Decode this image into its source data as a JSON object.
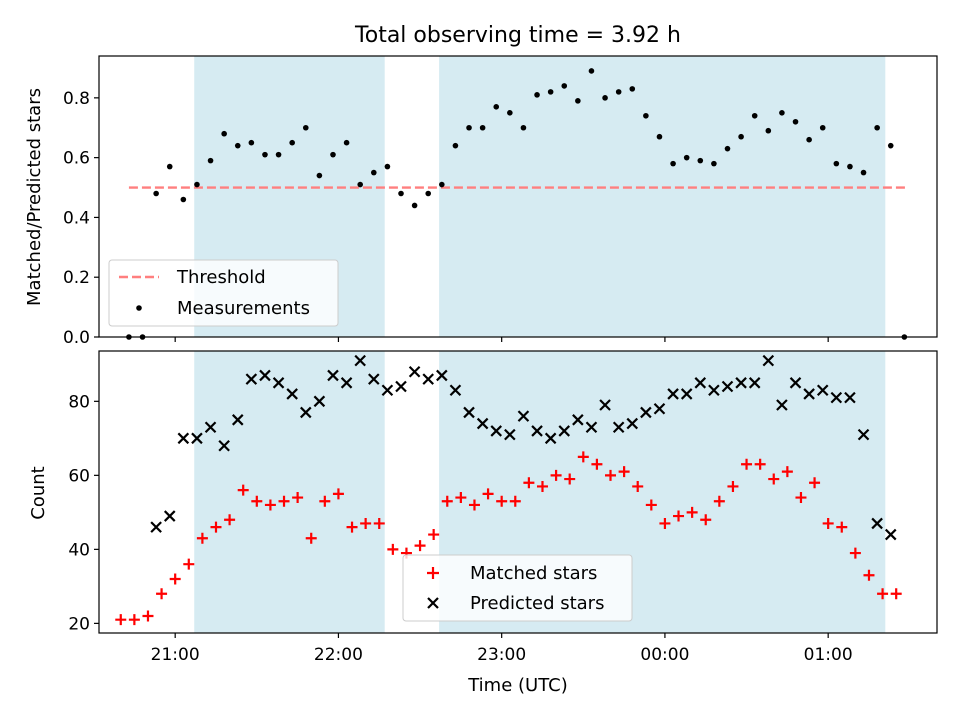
{
  "chart_data": [
    {
      "type": "scatter",
      "title": "Total observing time = 3.92 h",
      "ylabel": "Matched/Predicted stars",
      "xlabel": "",
      "ylim": [
        0.0,
        0.94
      ],
      "yticks": [
        "0.0",
        "0.2",
        "0.4",
        "0.6",
        "0.8"
      ],
      "ytick_values": [
        0.0,
        0.2,
        0.4,
        0.6,
        0.8
      ],
      "legend_placement": "lower-left",
      "legend": [
        "Threshold",
        "Measurements"
      ],
      "threshold": {
        "name": "Threshold",
        "value": 0.5,
        "color": "#ff7f7f",
        "x_start": "20:43",
        "x_end": "01:29"
      },
      "series": [
        {
          "name": "Measurements",
          "color": "#000000",
          "x": [
            "20:43",
            "20:48",
            "20:53",
            "20:58",
            "21:03",
            "21:08",
            "21:13",
            "21:18",
            "21:23",
            "21:28",
            "21:33",
            "21:38",
            "21:43",
            "21:48",
            "21:53",
            "21:58",
            "22:03",
            "22:08",
            "22:13",
            "22:18",
            "22:23",
            "22:28",
            "22:33",
            "22:38",
            "22:43",
            "22:48",
            "22:53",
            "22:58",
            "23:03",
            "23:08",
            "23:13",
            "23:18",
            "23:23",
            "23:28",
            "23:33",
            "23:38",
            "23:43",
            "23:48",
            "23:53",
            "23:58",
            "00:03",
            "00:08",
            "00:13",
            "00:18",
            "00:23",
            "00:28",
            "00:33",
            "00:38",
            "00:43",
            "00:48",
            "00:53",
            "00:58",
            "01:03",
            "01:08",
            "01:13",
            "01:18",
            "01:23",
            "01:28"
          ],
          "y": [
            0.0,
            0.0,
            0.48,
            0.57,
            0.46,
            0.51,
            0.59,
            0.68,
            0.64,
            0.65,
            0.61,
            0.61,
            0.65,
            0.7,
            0.54,
            0.61,
            0.65,
            0.51,
            0.55,
            0.57,
            0.48,
            0.44,
            0.48,
            0.51,
            0.64,
            0.7,
            0.7,
            0.77,
            0.75,
            0.7,
            0.81,
            0.82,
            0.84,
            0.79,
            0.89,
            0.8,
            0.82,
            0.83,
            0.74,
            0.67,
            0.58,
            0.6,
            0.59,
            0.58,
            0.63,
            0.67,
            0.74,
            0.69,
            0.75,
            0.72,
            0.66,
            0.7,
            0.58,
            0.57,
            0.55,
            0.7,
            0.64,
            0.0
          ]
        }
      ]
    },
    {
      "type": "scatter",
      "title": "",
      "ylabel": "Count",
      "xlabel": "Time (UTC)",
      "ylim": [
        17.4,
        93.6
      ],
      "yticks": [
        "20",
        "40",
        "60",
        "80"
      ],
      "ytick_values": [
        20,
        40,
        60,
        80
      ],
      "xlim": [
        "20:32",
        "01:40"
      ],
      "xticks": [
        "21:00",
        "22:00",
        "23:00",
        "00:00",
        "01:00"
      ],
      "legend_placement": "lower-center",
      "legend": [
        "Matched stars",
        "Predicted stars"
      ],
      "series": [
        {
          "name": "Matched stars",
          "marker": "plus",
          "color": "#ff0000",
          "x": [
            "20:40",
            "20:45",
            "20:50",
            "20:55",
            "21:00",
            "21:05",
            "21:10",
            "21:15",
            "21:20",
            "21:25",
            "21:30",
            "21:35",
            "21:40",
            "21:45",
            "21:50",
            "21:55",
            "22:00",
            "22:05",
            "22:10",
            "22:15",
            "22:20",
            "22:25",
            "22:30",
            "22:35",
            "22:40",
            "22:45",
            "22:50",
            "22:55",
            "23:00",
            "23:05",
            "23:10",
            "23:15",
            "23:20",
            "23:25",
            "23:30",
            "23:35",
            "23:40",
            "23:45",
            "23:50",
            "23:55",
            "00:00",
            "00:05",
            "00:10",
            "00:15",
            "00:20",
            "00:25",
            "00:30",
            "00:35",
            "00:40",
            "00:45",
            "00:50",
            "00:55",
            "01:00",
            "01:05",
            "01:10",
            "01:15",
            "01:20",
            "01:25"
          ],
          "y": [
            21,
            21,
            22,
            28,
            32,
            36,
            43,
            46,
            48,
            56,
            53,
            52,
            53,
            54,
            43,
            53,
            55,
            46,
            47,
            47,
            40,
            39,
            41,
            44,
            53,
            54,
            52,
            55,
            53,
            53,
            58,
            57,
            60,
            59,
            65,
            63,
            60,
            61,
            57,
            52,
            47,
            49,
            50,
            48,
            53,
            57,
            63,
            63,
            59,
            61,
            54,
            58,
            47,
            46,
            39,
            33,
            28,
            28
          ]
        },
        {
          "name": "Predicted stars",
          "marker": "x",
          "color": "#000000",
          "x": [
            "20:53",
            "20:58",
            "21:03",
            "21:08",
            "21:13",
            "21:18",
            "21:23",
            "21:28",
            "21:33",
            "21:38",
            "21:43",
            "21:48",
            "21:53",
            "21:58",
            "22:03",
            "22:08",
            "22:13",
            "22:18",
            "22:23",
            "22:28",
            "22:33",
            "22:38",
            "22:43",
            "22:48",
            "22:53",
            "22:58",
            "23:03",
            "23:08",
            "23:13",
            "23:18",
            "23:23",
            "23:28",
            "23:33",
            "23:38",
            "23:43",
            "23:48",
            "23:53",
            "23:58",
            "00:03",
            "00:08",
            "00:13",
            "00:18",
            "00:23",
            "00:28",
            "00:33",
            "00:38",
            "00:43",
            "00:48",
            "00:53",
            "00:58",
            "01:03",
            "01:08",
            "01:13",
            "01:18",
            "01:23"
          ],
          "y": [
            46,
            49,
            70,
            70,
            73,
            68,
            75,
            86,
            87,
            85,
            82,
            77,
            80,
            87,
            85,
            91,
            86,
            83,
            84,
            88,
            86,
            87,
            83,
            77,
            74,
            72,
            71,
            76,
            72,
            70,
            72,
            75,
            73,
            79,
            73,
            74,
            77,
            78,
            82,
            82,
            85,
            83,
            84,
            85,
            85,
            91,
            79,
            85,
            82,
            83,
            81,
            81,
            71,
            47,
            44
          ]
        }
      ]
    }
  ],
  "shared": {
    "xlim": [
      "20:32",
      "01:40"
    ],
    "xticks": [
      "21:00",
      "22:00",
      "23:00",
      "00:00",
      "01:00"
    ],
    "observing_spans": [
      [
        "21:07",
        "22:17"
      ],
      [
        "22:37",
        "01:21"
      ]
    ],
    "span_color": "#add8e6"
  }
}
